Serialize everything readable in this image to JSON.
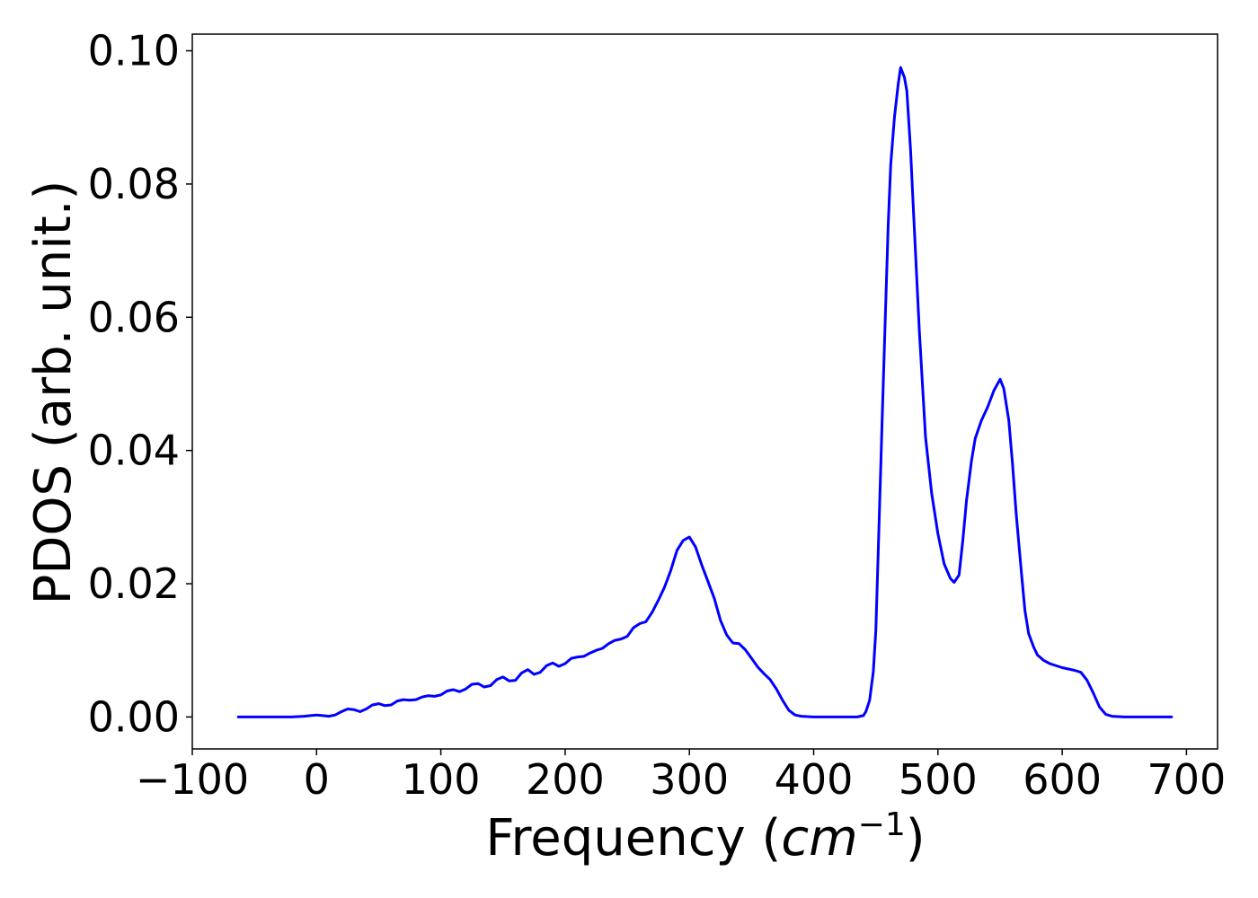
{
  "chart_data": {
    "type": "line",
    "title": "",
    "xlabel_prefix": "Frequency (",
    "xlabel_unit": "cm",
    "xlabel_exponent": "−1",
    "xlabel_suffix": ")",
    "ylabel": "PDOS (arb. unit.)",
    "xlim": [
      -100,
      725
    ],
    "ylim": [
      -0.0048,
      0.1025
    ],
    "grid": false,
    "legend": "none",
    "line_color": "#0000ff",
    "xticks": [
      {
        "value": -100,
        "label": "−100"
      },
      {
        "value": 0,
        "label": "0"
      },
      {
        "value": 100,
        "label": "100"
      },
      {
        "value": 200,
        "label": "200"
      },
      {
        "value": 300,
        "label": "300"
      },
      {
        "value": 400,
        "label": "400"
      },
      {
        "value": 500,
        "label": "500"
      },
      {
        "value": 600,
        "label": "600"
      },
      {
        "value": 700,
        "label": "700"
      }
    ],
    "yticks": [
      {
        "value": 0.0,
        "label": "0.00"
      },
      {
        "value": 0.02,
        "label": "0.02"
      },
      {
        "value": 0.04,
        "label": "0.04"
      },
      {
        "value": 0.06,
        "label": "0.06"
      },
      {
        "value": 0.08,
        "label": "0.08"
      },
      {
        "value": 0.1,
        "label": "0.10"
      }
    ],
    "x": [
      -63,
      -40,
      -20,
      -10,
      -5,
      0,
      5,
      10,
      15,
      20,
      25,
      30,
      35,
      40,
      45,
      50,
      55,
      60,
      65,
      70,
      75,
      80,
      85,
      90,
      95,
      100,
      105,
      110,
      115,
      120,
      125,
      130,
      135,
      140,
      145,
      150,
      155,
      160,
      165,
      170,
      175,
      180,
      185,
      190,
      195,
      200,
      205,
      210,
      215,
      220,
      225,
      230,
      235,
      240,
      245,
      250,
      255,
      260,
      265,
      270,
      275,
      280,
      285,
      290,
      295,
      300,
      305,
      310,
      315,
      320,
      325,
      330,
      335,
      340,
      345,
      350,
      355,
      360,
      365,
      370,
      375,
      380,
      385,
      390,
      400,
      420,
      435,
      440,
      442,
      445,
      448,
      450,
      452,
      455,
      458,
      460,
      462,
      465,
      468,
      470,
      473,
      475,
      478,
      480,
      485,
      490,
      495,
      500,
      505,
      510,
      513,
      517,
      520,
      523,
      527,
      530,
      535,
      540,
      545,
      550,
      553,
      557,
      560,
      563,
      567,
      570,
      573,
      577,
      580,
      585,
      590,
      600,
      610,
      615,
      620,
      625,
      630,
      635,
      640,
      650,
      670,
      688
    ],
    "y": [
      0.0,
      0.0,
      0.0,
      0.0001,
      0.0002,
      0.0003,
      0.0002,
      0.0001,
      0.0003,
      0.0008,
      0.0012,
      0.0011,
      0.0008,
      0.0012,
      0.0018,
      0.002,
      0.0017,
      0.0018,
      0.0024,
      0.0026,
      0.0025,
      0.0026,
      0.003,
      0.0032,
      0.0031,
      0.0033,
      0.0039,
      0.0041,
      0.0038,
      0.0042,
      0.0049,
      0.005,
      0.0045,
      0.0047,
      0.0056,
      0.006,
      0.0054,
      0.0055,
      0.0066,
      0.0071,
      0.0064,
      0.0067,
      0.0077,
      0.0081,
      0.0076,
      0.008,
      0.0088,
      0.009,
      0.0091,
      0.0096,
      0.01,
      0.0103,
      0.011,
      0.0115,
      0.0117,
      0.0121,
      0.0134,
      0.014,
      0.0143,
      0.0157,
      0.0175,
      0.0195,
      0.022,
      0.025,
      0.0265,
      0.027,
      0.0255,
      0.0228,
      0.0203,
      0.0178,
      0.0145,
      0.0123,
      0.0111,
      0.011,
      0.0101,
      0.0088,
      0.0075,
      0.0065,
      0.0056,
      0.0042,
      0.0025,
      0.001,
      0.0003,
      0.0001,
      0.0,
      0.0,
      0.0,
      0.0002,
      0.0008,
      0.0025,
      0.0068,
      0.013,
      0.025,
      0.044,
      0.062,
      0.074,
      0.083,
      0.09,
      0.095,
      0.0975,
      0.096,
      0.094,
      0.085,
      0.077,
      0.058,
      0.042,
      0.0335,
      0.0275,
      0.023,
      0.0208,
      0.0202,
      0.0213,
      0.0265,
      0.0325,
      0.0385,
      0.0418,
      0.0445,
      0.0465,
      0.049,
      0.0507,
      0.0493,
      0.0445,
      0.038,
      0.0305,
      0.022,
      0.016,
      0.0125,
      0.0105,
      0.0093,
      0.0085,
      0.008,
      0.0074,
      0.007,
      0.0067,
      0.0055,
      0.0036,
      0.0015,
      0.0004,
      0.0001,
      0.0,
      0.0,
      0.0
    ]
  }
}
